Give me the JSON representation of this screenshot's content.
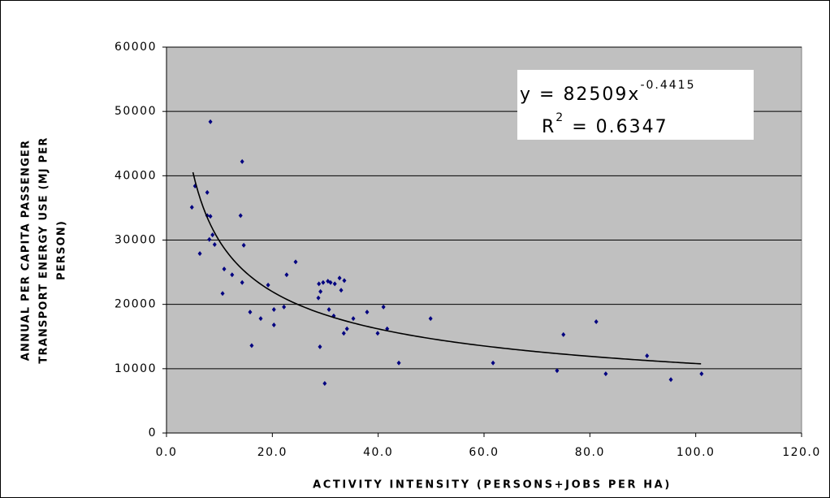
{
  "chart_data": {
    "type": "scatter",
    "xlabel": "ACTIVITY INTENSITY (PERSONS+JOBS PER HA)",
    "ylabel": [
      "ANNUAL PER CAPITA PASSENGER",
      "TRANSPORT ENERGY USE (MJ PER",
      "PERSON)"
    ],
    "x": [
      4.8,
      5.4,
      6.3,
      7.7,
      7.7,
      8.3,
      8.3,
      8.1,
      8.7,
      9.1,
      10.6,
      10.9,
      12.4,
      14.3,
      14.0,
      14.6,
      14.3,
      15.8,
      16.1,
      17.8,
      19.2,
      20.3,
      20.3,
      22.2,
      22.7,
      24.4,
      28.7,
      28.8,
      29.1,
      29.0,
      29.6,
      29.9,
      30.5,
      30.7,
      31.0,
      31.6,
      31.8,
      32.7,
      33.0,
      33.5,
      33.6,
      34.1,
      35.3,
      37.9,
      39.9,
      41.0,
      41.7,
      43.9,
      49.9,
      61.7,
      73.8,
      75.0,
      81.2,
      83.0,
      90.8,
      95.3,
      101.1
    ],
    "y": [
      35100,
      38400,
      27900,
      37400,
      33800,
      33700,
      48400,
      30100,
      30800,
      29300,
      21700,
      25500,
      24600,
      42200,
      33800,
      29200,
      23400,
      18800,
      13600,
      17800,
      23000,
      19200,
      16800,
      19600,
      24600,
      26600,
      21000,
      23200,
      22000,
      13400,
      23400,
      7700,
      23600,
      19200,
      23400,
      18200,
      23200,
      24100,
      22200,
      15500,
      23700,
      16200,
      17800,
      18800,
      15500,
      19600,
      16200,
      10900,
      17800,
      10900,
      9700,
      15300,
      17300,
      9200,
      12000,
      8300,
      9200
    ],
    "color": "#000080",
    "trendline": {
      "a": 82509,
      "b": -0.4415,
      "xrange": [
        5,
        101
      ],
      "color": "#000000"
    },
    "equation": {
      "prefix": "y = 82509x",
      "exponent": "-0.4415"
    },
    "r_squared": {
      "base": "R",
      "exponent": "2",
      "suffix": " = 0.6347"
    },
    "xlim": [
      0,
      120
    ],
    "xticks": [
      {
        "value": 0,
        "label": "0.0"
      },
      {
        "value": 20,
        "label": "20.0"
      },
      {
        "value": 40,
        "label": "40.0"
      },
      {
        "value": 60,
        "label": "60.0"
      },
      {
        "value": 80,
        "label": "80.0"
      },
      {
        "value": 100,
        "label": "100.0"
      },
      {
        "value": 120,
        "label": "120.0"
      }
    ],
    "ylim": [
      0,
      60000
    ],
    "yticks": [
      0,
      10000,
      20000,
      30000,
      40000,
      50000,
      60000
    ],
    "grid": true
  }
}
